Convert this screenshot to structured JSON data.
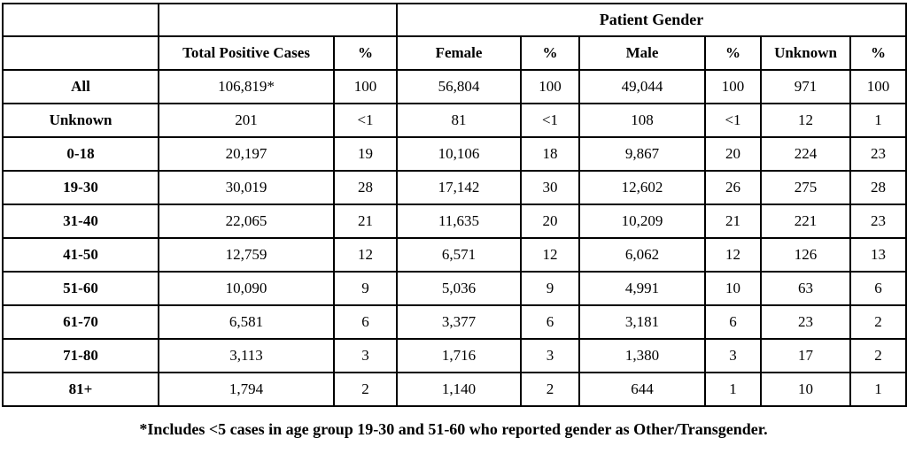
{
  "colors": {
    "border": "#000000",
    "text": "#000000",
    "background": "#ffffff"
  },
  "table": {
    "group_header": "Patient Gender",
    "columns": [
      "",
      "Total Positive Cases",
      "%",
      "Female",
      "%",
      "Male",
      "%",
      "Unknown",
      "%"
    ],
    "rows": [
      {
        "label": "All",
        "cells": [
          "106,819*",
          "100",
          "56,804",
          "100",
          "49,044",
          "100",
          "971",
          "100"
        ]
      },
      {
        "label": "Unknown",
        "cells": [
          "201",
          "<1",
          "81",
          "<1",
          "108",
          "<1",
          "12",
          "1"
        ]
      },
      {
        "label": "0-18",
        "cells": [
          "20,197",
          "19",
          "10,106",
          "18",
          "9,867",
          "20",
          "224",
          "23"
        ]
      },
      {
        "label": "19-30",
        "cells": [
          "30,019",
          "28",
          "17,142",
          "30",
          "12,602",
          "26",
          "275",
          "28"
        ]
      },
      {
        "label": "31-40",
        "cells": [
          "22,065",
          "21",
          "11,635",
          "20",
          "10,209",
          "21",
          "221",
          "23"
        ]
      },
      {
        "label": "41-50",
        "cells": [
          "12,759",
          "12",
          "6,571",
          "12",
          "6,062",
          "12",
          "126",
          "13"
        ]
      },
      {
        "label": "51-60",
        "cells": [
          "10,090",
          "9",
          "5,036",
          "9",
          "4,991",
          "10",
          "63",
          "6"
        ]
      },
      {
        "label": "61-70",
        "cells": [
          "6,581",
          "6",
          "3,377",
          "6",
          "3,181",
          "6",
          "23",
          "2"
        ]
      },
      {
        "label": "71-80",
        "cells": [
          "3,113",
          "3",
          "1,716",
          "3",
          "1,380",
          "3",
          "17",
          "2"
        ]
      },
      {
        "label": "81+",
        "cells": [
          "1,794",
          "2",
          "1,140",
          "2",
          "644",
          "1",
          "10",
          "1"
        ]
      }
    ]
  },
  "footnote": "*Includes <5 cases in age group 19-30 and 51-60 who reported gender as Other/Transgender."
}
